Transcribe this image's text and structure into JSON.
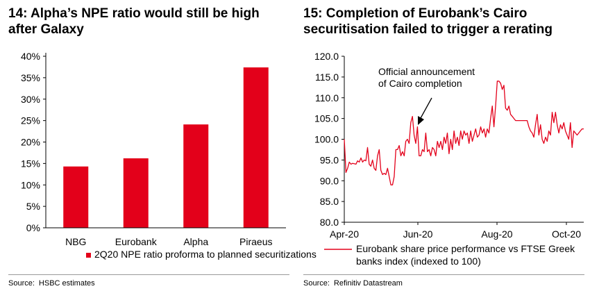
{
  "chart_data": [
    {
      "type": "bar",
      "title": "14: Alpha’s NPE ratio would still be high after Galaxy",
      "categories": [
        "NBG",
        "Eurobank",
        "Alpha",
        "Piraeus"
      ],
      "series": [
        {
          "name": "2Q20 NPE ratio proforma to planned securitizations",
          "values": [
            14.3,
            16.2,
            24.1,
            37.4
          ],
          "color": "#e3001a"
        }
      ],
      "yticks": [
        "0%",
        "5%",
        "10%",
        "15%",
        "20%",
        "25%",
        "30%",
        "35%",
        "40%"
      ],
      "ylim": [
        0,
        40
      ],
      "xlabel": "",
      "ylabel": "",
      "legend": "bottom",
      "source_label": "Source:",
      "source_text": "HSBC estimates"
    },
    {
      "type": "line",
      "title": "15: Completion of Eurobank’s Cairo securitisation failed to trigger a rerating",
      "ylim": [
        80,
        120
      ],
      "yticks": [
        "80.0",
        "85.0",
        "90.0",
        "95.0",
        "100.0",
        "105.0",
        "110.0",
        "115.0",
        "120.0"
      ],
      "xticks": [
        "Apr-20",
        "Jun-20",
        "Aug-20",
        "Oct-20"
      ],
      "series": [
        {
          "name": "Eurobank share price performance vs FTSE Greek banks index (indexed to 100)",
          "color": "#e3001a",
          "values": [
            100.0,
            92.0,
            93.0,
            94.5,
            94.0,
            94.2,
            94.1,
            94.0,
            94.8,
            94.5,
            95.5,
            94.5,
            95.0,
            94.8,
            98.0,
            94.0,
            93.5,
            95.0,
            93.0,
            92.5,
            96.0,
            97.5,
            92.5,
            91.5,
            91.8,
            91.5,
            93.0,
            91.0,
            89.0,
            89.0,
            91.0,
            97.5,
            97.5,
            98.5,
            96.0,
            97.0,
            96.0,
            99.5,
            100.0,
            99.0,
            104.0,
            105.5,
            101.0,
            99.0,
            103.0,
            96.0,
            96.0,
            97.5,
            97.0,
            101.5,
            97.0,
            97.5,
            96.0,
            98.0,
            97.5,
            96.0,
            99.5,
            98.0,
            99.5,
            97.5,
            100.5,
            99.0,
            101.5,
            96.5,
            100.0,
            97.5,
            102.0,
            99.0,
            100.5,
            98.5,
            102.0,
            100.0,
            102.0,
            101.0,
            101.5,
            99.0,
            102.0,
            99.5,
            101.0,
            102.5,
            100.5,
            101.0,
            103.0,
            101.5,
            102.5,
            100.5,
            102.5,
            101.5,
            105.0,
            108.0,
            103.0,
            108.0,
            114.0,
            114.0,
            113.5,
            112.0,
            113.0,
            107.5,
            107.0,
            108.0,
            106.0,
            105.5,
            105.0,
            104.5,
            104.5,
            104.5,
            104.5,
            104.5,
            104.5,
            104.5,
            104.5,
            103.0,
            102.0,
            101.5,
            100.5,
            103.5,
            106.0,
            101.0,
            103.5,
            100.0,
            99.0,
            100.5,
            99.5,
            102.0,
            101.0,
            106.5,
            104.0,
            106.5,
            103.5,
            101.5,
            103.5,
            102.5,
            104.0,
            102.0,
            101.0,
            100.0,
            104.0,
            98.0,
            102.0,
            101.5,
            101.0,
            101.5,
            102.0,
            102.5,
            102.5
          ]
        }
      ],
      "annotation": "Official announcement of Cairo completion",
      "annotation_lines": [
        "Official announcement",
        "of Cairo completion"
      ],
      "legend": "bottom",
      "source_label": "Source:",
      "source_text": "Refinitiv Datastream"
    }
  ]
}
